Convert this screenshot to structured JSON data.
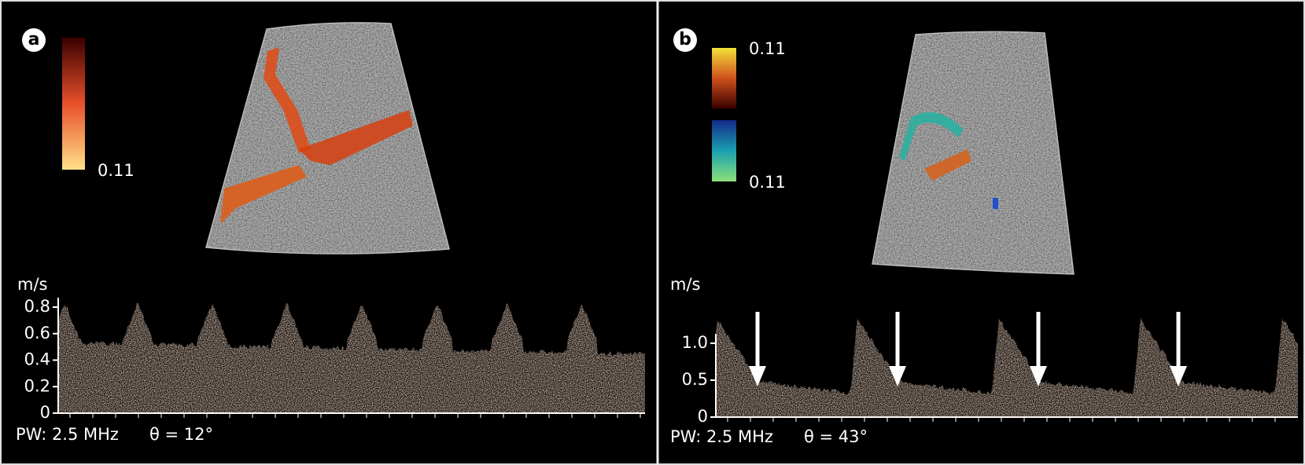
{
  "panels": [
    {
      "label": "a",
      "colorbar_labels": [
        "0.11"
      ],
      "unit": "m/s",
      "yticks": [
        "0",
        "0.2",
        "0.4",
        "0.6",
        "0.8"
      ],
      "footer_freq": "PW: 2.5 MHz",
      "footer_angle": "θ = 12°"
    },
    {
      "label": "b",
      "colorbar_labels": [
        "0.11",
        "0.11"
      ],
      "unit": "m/s",
      "yticks": [
        "0",
        "0.5",
        "1.0"
      ],
      "footer_freq": "PW: 2.5 MHz",
      "footer_angle": "θ = 43°"
    }
  ]
}
